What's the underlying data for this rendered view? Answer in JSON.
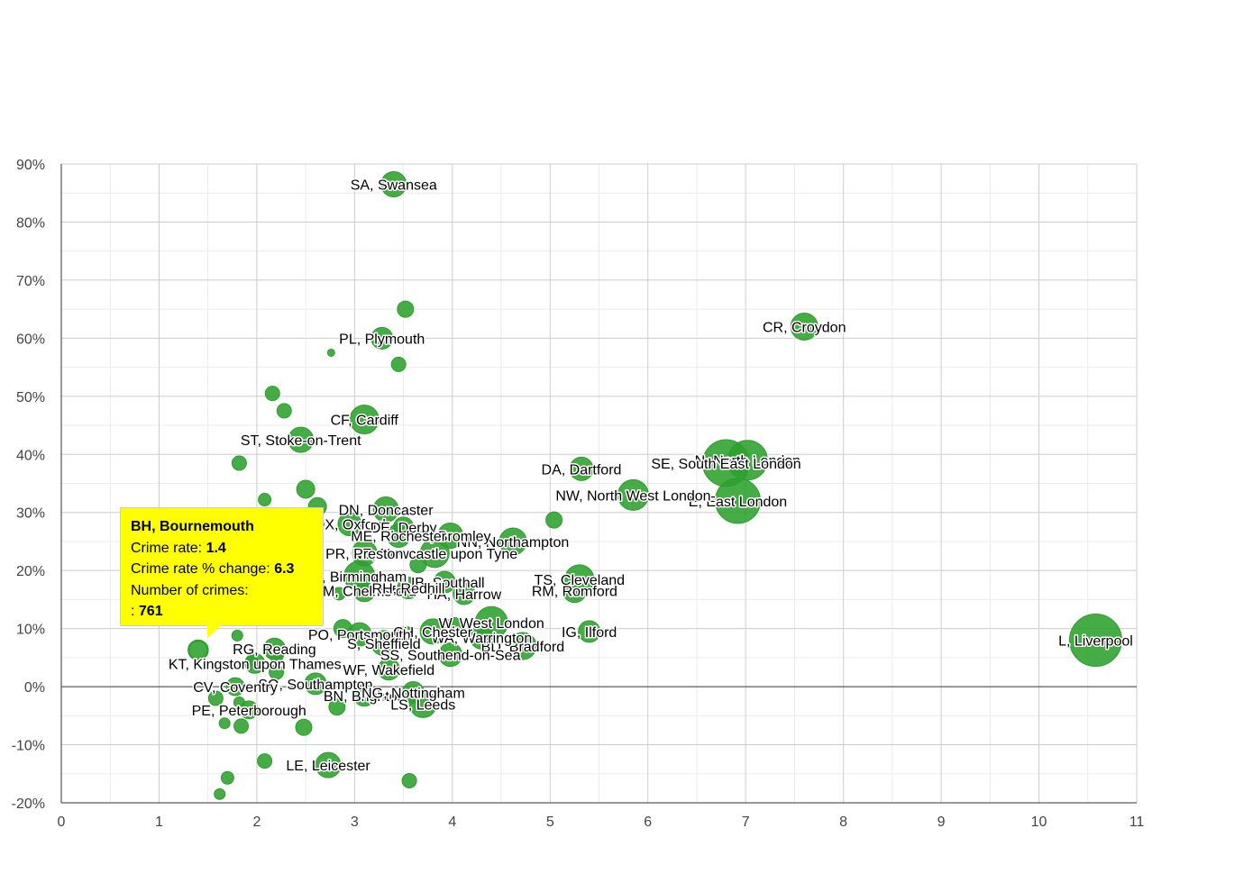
{
  "chart_data": {
    "type": "scatter",
    "title": "",
    "xlabel": "",
    "ylabel": "",
    "xlim": [
      0,
      11
    ],
    "ylim": [
      -20,
      90
    ],
    "x_ticks": [
      "0",
      "1",
      "2",
      "3",
      "4",
      "5",
      "6",
      "7",
      "8",
      "9",
      "10",
      "11"
    ],
    "y_ticks": [
      "90%",
      "80%",
      "70%",
      "60%",
      "50%",
      "40%",
      "30%",
      "20%",
      "10%",
      "0%",
      "-10%",
      "-20%"
    ],
    "series": [
      {
        "name": "Postcode areas",
        "color": "#2ca02c",
        "points": [
          {
            "label": "L, Liverpool",
            "x": 10.58,
            "y": 8,
            "r": 29
          },
          {
            "label": "CR, Croydon",
            "x": 7.6,
            "y": 62,
            "r": 15
          },
          {
            "label": "N, North London",
            "x": 7.02,
            "y": 39,
            "r": 22
          },
          {
            "label": "SE, South East London",
            "x": 6.8,
            "y": 38.5,
            "r": 26
          },
          {
            "label": "E, East London",
            "x": 6.92,
            "y": 32,
            "r": 25
          },
          {
            "label": "NW, North West London",
            "x": 5.85,
            "y": 33,
            "r": 17
          },
          {
            "label": "DA, Dartford",
            "x": 5.32,
            "y": 37.5,
            "r": 13
          },
          {
            "label": "TS, Cleveland",
            "x": 5.3,
            "y": 18.5,
            "r": 16
          },
          {
            "label": "RM, Romford",
            "x": 5.25,
            "y": 16.5,
            "r": 13
          },
          {
            "label": "IG, Ilford",
            "x": 5.4,
            "y": 9.5,
            "r": 12
          },
          {
            "label": "BD, Bradford",
            "x": 4.72,
            "y": 7,
            "r": 15
          },
          {
            "label": "NN, Northampton",
            "x": 4.62,
            "y": 25,
            "r": 15
          },
          {
            "label": "W, West London",
            "x": 4.4,
            "y": 11,
            "r": 18
          },
          {
            "label": "WA, Warrington",
            "x": 4.3,
            "y": 8.5,
            "r": 13
          },
          {
            "label": "BR, Bromley",
            "x": 3.98,
            "y": 26,
            "r": 14
          },
          {
            "label": "NE, Newcastle upon Tyne",
            "x": 3.82,
            "y": 23,
            "r": 16
          },
          {
            "label": "UB, Southall",
            "x": 3.92,
            "y": 18,
            "r": 12
          },
          {
            "label": "HA, Harrow",
            "x": 4.12,
            "y": 16,
            "r": 12
          },
          {
            "label": "SS, Southend-on-Sea",
            "x": 3.98,
            "y": 5.5,
            "r": 13
          },
          {
            "label": "CH, Chester",
            "x": 3.8,
            "y": 9.5,
            "r": 14
          },
          {
            "label": "SA, Swansea",
            "x": 3.4,
            "y": 86.5,
            "r": 14
          },
          {
            "label": "PL, Plymouth",
            "x": 3.28,
            "y": 60,
            "r": 12
          },
          {
            "label": "CF, Cardiff",
            "x": 3.1,
            "y": 46,
            "r": 16
          },
          {
            "label": "ST, Stoke-on-Trent",
            "x": 2.45,
            "y": 42.5,
            "r": 14
          },
          {
            "label": "DN, Doncaster",
            "x": 3.32,
            "y": 30.5,
            "r": 14
          },
          {
            "label": "OX, Oxford",
            "x": 2.95,
            "y": 28,
            "r": 13
          },
          {
            "label": "DE, Derby",
            "x": 3.5,
            "y": 27.5,
            "r": 11
          },
          {
            "label": "ME, Rochester",
            "x": 3.45,
            "y": 26,
            "r": 13
          },
          {
            "label": "PR, Preston",
            "x": 3.1,
            "y": 23,
            "r": 14
          },
          {
            "label": "B, Birmingham",
            "x": 3.05,
            "y": 19,
            "r": 17
          },
          {
            "label": "CM, Chelmsford",
            "x": 3.1,
            "y": 16.5,
            "r": 12
          },
          {
            "label": "RH, Redhill",
            "x": 3.55,
            "y": 17,
            "r": 12
          },
          {
            "label": "PO, Portsmouth",
            "x": 3.05,
            "y": 9,
            "r": 13
          },
          {
            "label": "S, Sheffield",
            "x": 3.3,
            "y": 7.5,
            "r": 14
          },
          {
            "label": "SO, Southampton",
            "x": 2.6,
            "y": 0.5,
            "r": 12
          },
          {
            "label": "WF, Wakefield",
            "x": 3.35,
            "y": 3,
            "r": 12
          },
          {
            "label": "BN, Brighton",
            "x": 3.1,
            "y": -1.5,
            "r": 12
          },
          {
            "label": "NG, Nottingham",
            "x": 3.6,
            "y": -1,
            "r": 12
          },
          {
            "label": "LS, Leeds",
            "x": 3.7,
            "y": -3,
            "r": 15
          },
          {
            "label": "RG, Reading",
            "x": 2.18,
            "y": 6.5,
            "r": 12
          },
          {
            "label": "KT, Kingston upon Thames",
            "x": 1.98,
            "y": 4,
            "r": 11
          },
          {
            "label": "CV, Coventry",
            "x": 1.78,
            "y": 0,
            "r": 10
          },
          {
            "label": "PE, Peterborough",
            "x": 1.92,
            "y": -4,
            "r": 10
          },
          {
            "label": "LE, Leicester",
            "x": 2.73,
            "y": -13.5,
            "r": 14
          },
          {
            "label": "BH, Bournemouth",
            "x": 1.4,
            "y": 6.3,
            "r": 10
          },
          {
            "label": "",
            "x": 3.52,
            "y": 65,
            "r": 9
          },
          {
            "label": "",
            "x": 3.45,
            "y": 55.5,
            "r": 8
          },
          {
            "label": "",
            "x": 2.76,
            "y": 57.5,
            "r": 4
          },
          {
            "label": "",
            "x": 2.16,
            "y": 50.5,
            "r": 8
          },
          {
            "label": "",
            "x": 2.28,
            "y": 47.5,
            "r": 8
          },
          {
            "label": "",
            "x": 1.82,
            "y": 38.5,
            "r": 8
          },
          {
            "label": "",
            "x": 2.5,
            "y": 34,
            "r": 10
          },
          {
            "label": "",
            "x": 2.08,
            "y": 32.2,
            "r": 7
          },
          {
            "label": "",
            "x": 2.62,
            "y": 31,
            "r": 10
          },
          {
            "label": "",
            "x": 5.04,
            "y": 28.7,
            "r": 9
          },
          {
            "label": "",
            "x": 3.65,
            "y": 21,
            "r": 9
          },
          {
            "label": "",
            "x": 2.84,
            "y": 16,
            "r": 7
          },
          {
            "label": "",
            "x": 2.88,
            "y": 10,
            "r": 10
          },
          {
            "label": "",
            "x": 3.52,
            "y": 9,
            "r": 9
          },
          {
            "label": "",
            "x": 4.02,
            "y": 10.5,
            "r": 9
          },
          {
            "label": "",
            "x": 1.8,
            "y": 8.8,
            "r": 6
          },
          {
            "label": "",
            "x": 2.2,
            "y": 5.5,
            "r": 8
          },
          {
            "label": "",
            "x": 2.2,
            "y": 2.5,
            "r": 8
          },
          {
            "label": "",
            "x": 1.95,
            "y": 4.5,
            "r": 6
          },
          {
            "label": "",
            "x": 1.58,
            "y": -2,
            "r": 8
          },
          {
            "label": "",
            "x": 1.82,
            "y": -2.7,
            "r": 6
          },
          {
            "label": "",
            "x": 1.67,
            "y": -6.3,
            "r": 6
          },
          {
            "label": "",
            "x": 1.84,
            "y": -6.8,
            "r": 8
          },
          {
            "label": "",
            "x": 2.48,
            "y": -7,
            "r": 9
          },
          {
            "label": "",
            "x": 2.82,
            "y": -3.5,
            "r": 9
          },
          {
            "label": "",
            "x": 2.08,
            "y": -12.8,
            "r": 8
          },
          {
            "label": "",
            "x": 1.7,
            "y": -15.7,
            "r": 7
          },
          {
            "label": "",
            "x": 1.62,
            "y": -18.5,
            "r": 6
          },
          {
            "label": "",
            "x": 3.56,
            "y": -16.2,
            "r": 8
          }
        ]
      }
    ]
  },
  "tooltip": {
    "title": "BH, Bournemouth",
    "rate_label": "Crime rate:",
    "rate_value": "1.4",
    "change_label": "Crime rate % change:",
    "change_value": "6.3",
    "count_label": "Number of crimes:",
    "count_prefix": ":",
    "count_value": "761"
  }
}
